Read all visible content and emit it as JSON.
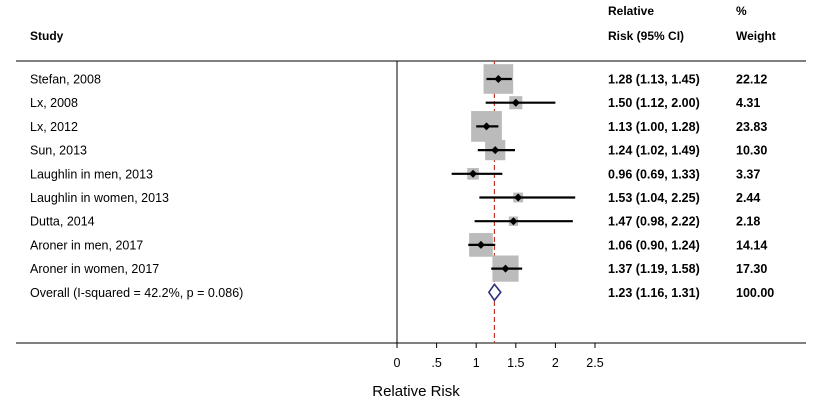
{
  "chart_data": {
    "type": "forest",
    "headers": {
      "study": "Study",
      "ci_line1": "Relative",
      "ci_line2": "Risk (95% CI)",
      "weight_line1": "%",
      "weight_line2": "Weight"
    },
    "studies": [
      {
        "name": "Stefan, 2008",
        "rr": 1.28,
        "lo": 1.13,
        "hi": 1.45,
        "ci_text": "1.28 (1.13, 1.45)",
        "weight": 22.12,
        "weight_text": "22.12"
      },
      {
        "name": "Lx, 2008",
        "rr": 1.5,
        "lo": 1.12,
        "hi": 2.0,
        "ci_text": "1.50 (1.12, 2.00)",
        "weight": 4.31,
        "weight_text": "4.31"
      },
      {
        "name": "Lx, 2012",
        "rr": 1.13,
        "lo": 1.0,
        "hi": 1.28,
        "ci_text": "1.13 (1.00, 1.28)",
        "weight": 23.83,
        "weight_text": "23.83"
      },
      {
        "name": "Sun, 2013",
        "rr": 1.24,
        "lo": 1.02,
        "hi": 1.49,
        "ci_text": "1.24 (1.02, 1.49)",
        "weight": 10.3,
        "weight_text": "10.30"
      },
      {
        "name": "Laughlin in men, 2013",
        "rr": 0.96,
        "lo": 0.69,
        "hi": 1.33,
        "ci_text": "0.96 (0.69, 1.33)",
        "weight": 3.37,
        "weight_text": "3.37"
      },
      {
        "name": "Laughlin in women, 2013",
        "rr": 1.53,
        "lo": 1.04,
        "hi": 2.25,
        "ci_text": "1.53 (1.04, 2.25)",
        "weight": 2.44,
        "weight_text": "2.44"
      },
      {
        "name": "Dutta, 2014",
        "rr": 1.47,
        "lo": 0.98,
        "hi": 2.22,
        "ci_text": "1.47 (0.98, 2.22)",
        "weight": 2.18,
        "weight_text": "2.18"
      },
      {
        "name": "Aroner in men, 2017",
        "rr": 1.06,
        "lo": 0.9,
        "hi": 1.24,
        "ci_text": "1.06 (0.90, 1.24)",
        "weight": 14.14,
        "weight_text": "14.14"
      },
      {
        "name": "Aroner in women, 2017",
        "rr": 1.37,
        "lo": 1.19,
        "hi": 1.58,
        "ci_text": "1.37 (1.19, 1.58)",
        "weight": 17.3,
        "weight_text": "17.30"
      }
    ],
    "overall": {
      "name": "Overall  (I-squared = 42.2%, p = 0.086)",
      "rr": 1.23,
      "lo": 1.16,
      "hi": 1.31,
      "ci_text": "1.23 (1.16, 1.31)",
      "weight": 100.0,
      "weight_text": "100.00"
    },
    "x_ticks": [
      {
        "value": 0,
        "label": "0"
      },
      {
        "value": 0.5,
        "label": ".5"
      },
      {
        "value": 1,
        "label": "1"
      },
      {
        "value": 1.5,
        "label": "1.5"
      },
      {
        "value": 2,
        "label": "2"
      },
      {
        "value": 2.5,
        "label": "2.5"
      }
    ],
    "xlim": [
      0,
      2.5
    ],
    "xlabel": "Relative Risk",
    "null_line": 0,
    "pooled_line": 1.23,
    "colors": {
      "box": "#bbbbbb",
      "marker": "#000000",
      "pooled_line": "#c0392b",
      "diamond": "#2c2f7a"
    }
  }
}
